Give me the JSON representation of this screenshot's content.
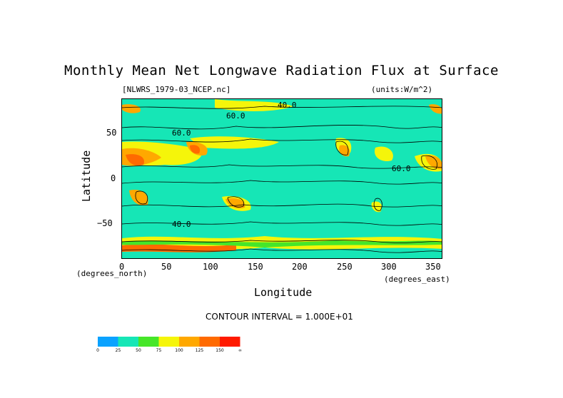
{
  "chart_data": {
    "type": "heatmap",
    "title": "Monthly Mean Net Longwave Radiation Flux at Surface",
    "file_label": "[NLWRS_1979-03_NCEP.nc]",
    "units_label": "(units:W/m^2)",
    "xlabel": "Longitude",
    "ylabel": "Latitude",
    "x_units": "(degrees_east)",
    "y_units": "(degrees_north)",
    "xlim": [
      0,
      360
    ],
    "ylim": [
      -90,
      90
    ],
    "x_ticks": [
      "0",
      "50",
      "100",
      "150",
      "200",
      "250",
      "300",
      "350"
    ],
    "y_ticks": [
      "50",
      "0",
      "−50"
    ],
    "contour_interval": "CONTOUR INTERVAL = 1.000E+01",
    "contour_labels": [
      "40.0",
      "60.0",
      "60.0",
      "60.0",
      "40.0"
    ],
    "colorbar": {
      "bins": [
        {
          "label": "0",
          "color": "#0aa2ff"
        },
        {
          "label": "25",
          "color": "#16e6b6"
        },
        {
          "label": "50",
          "color": "#46e629"
        },
        {
          "label": "75",
          "color": "#f5f50a"
        },
        {
          "label": "100",
          "color": "#ffa800"
        },
        {
          "label": "125",
          "color": "#ff6a00"
        },
        {
          "label": "150",
          "color": "#ff1a00"
        }
      ],
      "end_label": "∞"
    }
  }
}
